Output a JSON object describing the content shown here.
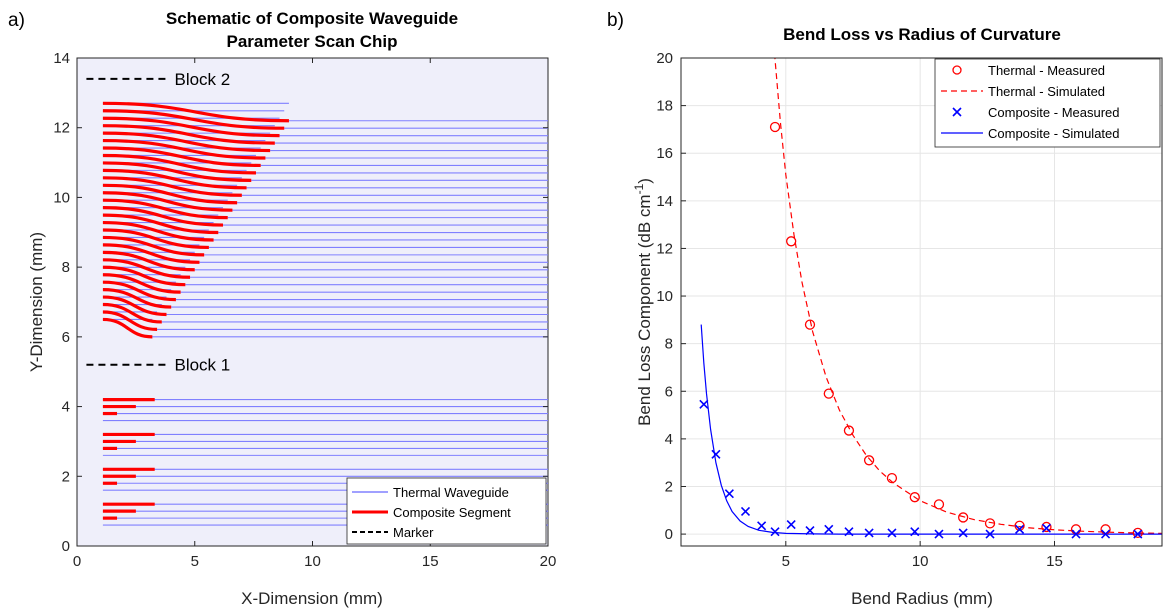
{
  "chart_data": [
    {
      "panel_label": "a)",
      "type": "line",
      "title_lines": [
        "Schematic of Composite Waveguide",
        "Parameter Scan Chip"
      ],
      "xlabel": "X-Dimension (mm)",
      "ylabel": "Y-Dimension (mm)",
      "xlim": [
        0,
        20
      ],
      "ylim": [
        0,
        14
      ],
      "xticks": [
        "0",
        "5",
        "10",
        "15",
        "20"
      ],
      "yticks": [
        "0",
        "2",
        "4",
        "6",
        "8",
        "10",
        "12",
        "14"
      ],
      "background": "#efeffa",
      "legend_position": "bottom-right",
      "legend": [
        {
          "label": "Thermal Waveguide",
          "color": "#8080ff",
          "style": "solid-thin"
        },
        {
          "label": "Composite Segment",
          "color": "#ff0000",
          "style": "solid-thick"
        },
        {
          "label": "Marker",
          "color": "#000000",
          "style": "dashed"
        }
      ],
      "markers": [
        {
          "label": "Block 2",
          "y": 13.4,
          "x_start": 0.4,
          "x_end": 3.8
        },
        {
          "label": "Block 1",
          "y": 5.2,
          "x_start": 0.4,
          "x_end": 3.8
        }
      ],
      "block2": {
        "straight_x_start": 1.1,
        "straight_x_end": 20,
        "rows": 30,
        "left_y_start": 6.5,
        "left_y_end": 12.7,
        "right_y_start": 6.0,
        "right_y_end": 12.2,
        "segment_x_start": 1.1,
        "segment_x_end_min": 3.2,
        "segment_x_end_max": 9.0
      },
      "block1": {
        "groups": [
          {
            "waveguide_y": [
              0.6,
              0.8,
              1.0,
              1.2
            ],
            "segments": [
              {
                "y": 1.2,
                "x_end": 3.3
              },
              {
                "y": 1.0,
                "x_end": 2.5
              },
              {
                "y": 0.8,
                "x_end": 1.7
              }
            ]
          },
          {
            "waveguide_y": [
              1.6,
              1.8,
              2.0,
              2.2
            ],
            "segments": [
              {
                "y": 2.2,
                "x_end": 3.3
              },
              {
                "y": 2.0,
                "x_end": 2.5
              },
              {
                "y": 1.8,
                "x_end": 1.7
              }
            ]
          },
          {
            "waveguide_y": [
              2.6,
              2.8,
              3.0,
              3.2
            ],
            "segments": [
              {
                "y": 3.2,
                "x_end": 3.3
              },
              {
                "y": 3.0,
                "x_end": 2.5
              },
              {
                "y": 2.8,
                "x_end": 1.7
              }
            ]
          },
          {
            "waveguide_y": [
              3.6,
              3.8,
              4.0,
              4.2
            ],
            "segments": [
              {
                "y": 4.2,
                "x_end": 3.3
              },
              {
                "y": 4.0,
                "x_end": 2.5
              },
              {
                "y": 3.8,
                "x_end": 1.7
              }
            ]
          }
        ],
        "segment_x_start": 1.1
      }
    },
    {
      "panel_label": "b)",
      "type": "scatter",
      "title": "Bend Loss vs Radius of Curvature",
      "xlabel": "Bend Radius (mm)",
      "ylabel_main": "Bend Loss Component (dB cm",
      "ylabel_sup": "-1",
      "ylabel_close": ")",
      "xlim": [
        1.1,
        19
      ],
      "ylim": [
        -0.5,
        20
      ],
      "xticks": [
        "5",
        "10",
        "15"
      ],
      "yticks": [
        "0",
        "2",
        "4",
        "6",
        "8",
        "10",
        "12",
        "14",
        "16",
        "18",
        "20"
      ],
      "grid": true,
      "legend_position": "top-right",
      "legend": [
        {
          "label": "Thermal - Measured",
          "color": "#ff0000",
          "marker": "circle"
        },
        {
          "label": "Thermal - Simulated",
          "color": "#ff0000",
          "line": "dashed"
        },
        {
          "label": "Composite - Measured",
          "color": "#0000ff",
          "marker": "x"
        },
        {
          "label": "Composite - Simulated",
          "color": "#0000ff",
          "line": "solid"
        }
      ],
      "series": [
        {
          "name": "Thermal - Measured",
          "color": "#ff0000",
          "x": [
            4.6,
            5.2,
            5.9,
            6.6,
            7.35,
            8.1,
            8.95,
            9.8,
            10.7,
            11.6,
            12.6,
            13.7,
            14.7,
            15.8,
            16.9,
            18.1
          ],
          "y": [
            17.1,
            12.3,
            8.8,
            5.9,
            4.35,
            3.1,
            2.35,
            1.55,
            1.25,
            0.7,
            0.45,
            0.35,
            0.3,
            0.2,
            0.2,
            0.05
          ]
        },
        {
          "name": "Thermal - Simulated",
          "color": "#ff0000",
          "x": [
            4.58,
            4.8,
            5.0,
            5.3,
            5.6,
            6.0,
            6.5,
            7.0,
            7.5,
            8.0,
            8.5,
            9.0,
            10.0,
            11.0,
            12.0,
            13.0,
            14.0,
            15.0,
            16.0,
            17.0,
            18.0,
            19.0
          ],
          "y": [
            20.2,
            17.3,
            15.1,
            12.6,
            10.6,
            8.5,
            6.6,
            5.2,
            4.15,
            3.3,
            2.65,
            2.15,
            1.4,
            0.92,
            0.61,
            0.41,
            0.27,
            0.18,
            0.12,
            0.08,
            0.05,
            0.03
          ]
        },
        {
          "name": "Composite - Measured",
          "color": "#0000ff",
          "x": [
            1.95,
            2.4,
            2.9,
            3.5,
            4.1,
            4.6,
            5.2,
            5.9,
            6.6,
            7.35,
            8.1,
            8.95,
            9.8,
            10.7,
            11.6,
            12.6,
            13.7,
            14.7,
            15.8,
            16.9,
            18.1
          ],
          "y": [
            5.45,
            3.35,
            1.7,
            0.95,
            0.35,
            0.1,
            0.4,
            0.15,
            0.2,
            0.1,
            0.05,
            0.05,
            0.1,
            0.0,
            0.05,
            0.0,
            0.2,
            0.25,
            0.0,
            0.0,
            0.0
          ]
        },
        {
          "name": "Composite - Simulated",
          "color": "#0000ff",
          "x": [
            1.85,
            1.95,
            2.05,
            2.2,
            2.4,
            2.6,
            2.8,
            3.0,
            3.3,
            3.6,
            4.0,
            4.5,
            5.0,
            6.0,
            7.0,
            9.0,
            12.0,
            15.0,
            19.0
          ],
          "y": [
            8.8,
            7.2,
            5.9,
            4.4,
            3.0,
            2.05,
            1.4,
            0.95,
            0.55,
            0.32,
            0.16,
            0.07,
            0.03,
            0.01,
            0.0,
            0.0,
            0.0,
            0.0,
            0.0
          ]
        }
      ]
    }
  ]
}
